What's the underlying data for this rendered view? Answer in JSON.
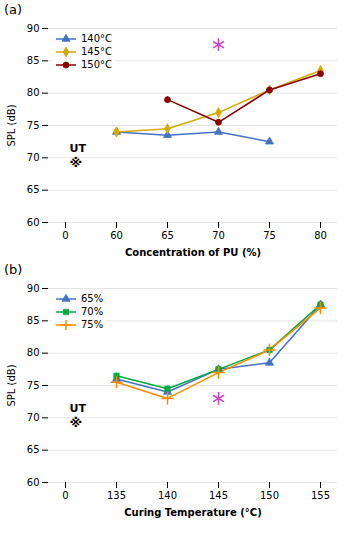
{
  "chart_data": [
    {
      "type": "line",
      "title": "(a)",
      "xlabel": "Concentration of PU (%)",
      "ylabel": "SPL (dB)",
      "categories": [
        "0",
        "60",
        "65",
        "70",
        "75",
        "80"
      ],
      "series": [
        {
          "name": "140°C",
          "color": "#4472C4",
          "marker": "triangle",
          "values": [
            null,
            74.0,
            73.5,
            74.0,
            72.5,
            null
          ],
          "errors": [
            null,
            0.4,
            0.4,
            0.4,
            0.4,
            null
          ]
        },
        {
          "name": "145°C",
          "color": "#D4AA00",
          "marker": "diamond",
          "values": [
            null,
            74.0,
            74.5,
            77.0,
            80.5,
            83.5
          ],
          "errors": [
            null,
            0.4,
            0.4,
            0.4,
            0.4,
            0.4
          ]
        },
        {
          "name": "150°C",
          "color": "#8B0000",
          "marker": "circle",
          "values": [
            null,
            null,
            79.0,
            75.5,
            80.5,
            83.0
          ],
          "errors": [
            null,
            null,
            0.4,
            0.4,
            0.4,
            0.4
          ]
        }
      ],
      "ylim": [
        60,
        90
      ],
      "yticks": [
        60,
        65,
        70,
        75,
        80,
        85,
        90
      ],
      "grid": true,
      "legend": "upper left",
      "annotations": [
        {
          "text": "UT",
          "category": "0",
          "value": 70.5
        },
        {
          "text": "※",
          "category": "0",
          "value": 70.5
        }
      ],
      "points": [
        {
          "category": "70",
          "value": 87.5,
          "color": "#CC44CC",
          "marker": "asterisk"
        }
      ]
    },
    {
      "type": "line",
      "title": "(b)",
      "xlabel": "Curing Temperature (°C)",
      "ylabel": "SPL (dB)",
      "categories": [
        "0",
        "135",
        "140",
        "145",
        "150",
        "155"
      ],
      "series": [
        {
          "name": "65%",
          "color": "#4472C4",
          "marker": "triangle",
          "values": [
            null,
            76.0,
            74.0,
            77.5,
            78.5,
            87.5
          ],
          "errors": [
            null,
            0.4,
            0.4,
            0.4,
            0.4,
            0.4
          ]
        },
        {
          "name": "70%",
          "color": "#00AA44",
          "marker": "square",
          "values": [
            null,
            76.5,
            74.5,
            77.5,
            80.5,
            87.5
          ],
          "errors": [
            null,
            0.4,
            0.4,
            0.4,
            0.4,
            0.4
          ]
        },
        {
          "name": "75%",
          "color": "#FF8C00",
          "marker": "plus",
          "values": [
            null,
            75.5,
            73.0,
            77.0,
            80.5,
            87.0
          ],
          "errors": [
            null,
            0.4,
            0.4,
            0.4,
            0.4,
            0.4
          ]
        }
      ],
      "ylim": [
        60,
        90
      ],
      "yticks": [
        60,
        65,
        70,
        75,
        80,
        85,
        90
      ],
      "grid": true,
      "legend": "upper left",
      "annotations": [
        {
          "text": "UT",
          "category": "0",
          "value": 70.5
        },
        {
          "text": "※",
          "category": "0",
          "value": 70.5
        }
      ],
      "points": [
        {
          "category": "145",
          "value": 73.0,
          "color": "#CC44CC",
          "marker": "asterisk"
        }
      ]
    }
  ]
}
